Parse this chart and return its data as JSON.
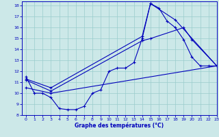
{
  "xlabel": "Graphe des températures (°C)",
  "bg_color": "#cce8e8",
  "grid_color": "#99cccc",
  "line_color": "#0000bb",
  "xlim": [
    -0.5,
    23
  ],
  "ylim": [
    8,
    18.4
  ],
  "xticks": [
    0,
    1,
    2,
    3,
    4,
    5,
    6,
    7,
    8,
    9,
    10,
    11,
    12,
    13,
    14,
    15,
    16,
    17,
    18,
    19,
    20,
    21,
    22,
    23
  ],
  "yticks": [
    8,
    9,
    10,
    11,
    12,
    13,
    14,
    15,
    16,
    17,
    18
  ],
  "series1_x": [
    0,
    1,
    2,
    3,
    4,
    5,
    6,
    7,
    8,
    9,
    10,
    11,
    12,
    13,
    14,
    15,
    16,
    17,
    18,
    19,
    20,
    21,
    22,
    23
  ],
  "series1_y": [
    11.5,
    10.0,
    10.0,
    9.6,
    8.6,
    8.5,
    8.5,
    8.8,
    10.0,
    10.3,
    12.0,
    12.3,
    12.3,
    12.8,
    15.0,
    18.2,
    17.8,
    16.6,
    16.0,
    14.9,
    13.3,
    12.5,
    12.5,
    12.5
  ],
  "series2_x": [
    0,
    3,
    23
  ],
  "series2_y": [
    10.5,
    10.0,
    12.5
  ],
  "series3_x": [
    0,
    3,
    14,
    15,
    19,
    20,
    23
  ],
  "series3_y": [
    11.2,
    10.2,
    14.8,
    15.0,
    16.0,
    14.9,
    12.5
  ],
  "series4_x": [
    0,
    3,
    14,
    15,
    18,
    23
  ],
  "series4_y": [
    11.3,
    10.5,
    15.2,
    18.2,
    16.7,
    12.5
  ]
}
